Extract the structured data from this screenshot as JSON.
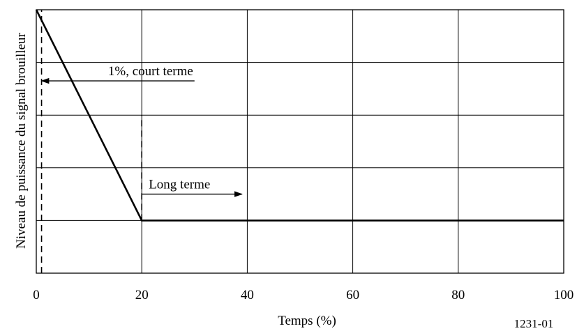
{
  "chart_data": {
    "type": "line",
    "title": "",
    "xlabel": "Temps (%)",
    "ylabel": "Niveau de puissance du signal brouilleur",
    "xlim": [
      0,
      100
    ],
    "x_ticks": [
      "0",
      "20",
      "40",
      "60",
      "80",
      "100"
    ],
    "x_tick_values": [
      0,
      20,
      40,
      60,
      80,
      100
    ],
    "y_ticks_labeled": false,
    "ylim": [
      0,
      5
    ],
    "grid": true,
    "legend": "none",
    "series": [
      {
        "color": "#000000",
        "points": [
          {
            "x": 0,
            "y": 5
          },
          {
            "x": 20,
            "y": 1
          },
          {
            "x": 100,
            "y": 1
          }
        ]
      }
    ],
    "reference_lines": [
      {
        "x": 1,
        "y_from": 0,
        "y_to": 5,
        "style": "dashed"
      },
      {
        "x": 20,
        "y_from": 1,
        "y_to": 3,
        "style": "dashed"
      }
    ],
    "annotations": [
      {
        "text": "1%, court terme",
        "arrow": "left",
        "arrow_from_x": 30,
        "arrow_to_x": 1,
        "y": 3.65
      },
      {
        "text": "Long terme",
        "arrow": "right",
        "arrow_from_x": 20,
        "arrow_to_x": 39,
        "y": 1.5
      }
    ]
  },
  "figure_ref": "1231-01"
}
